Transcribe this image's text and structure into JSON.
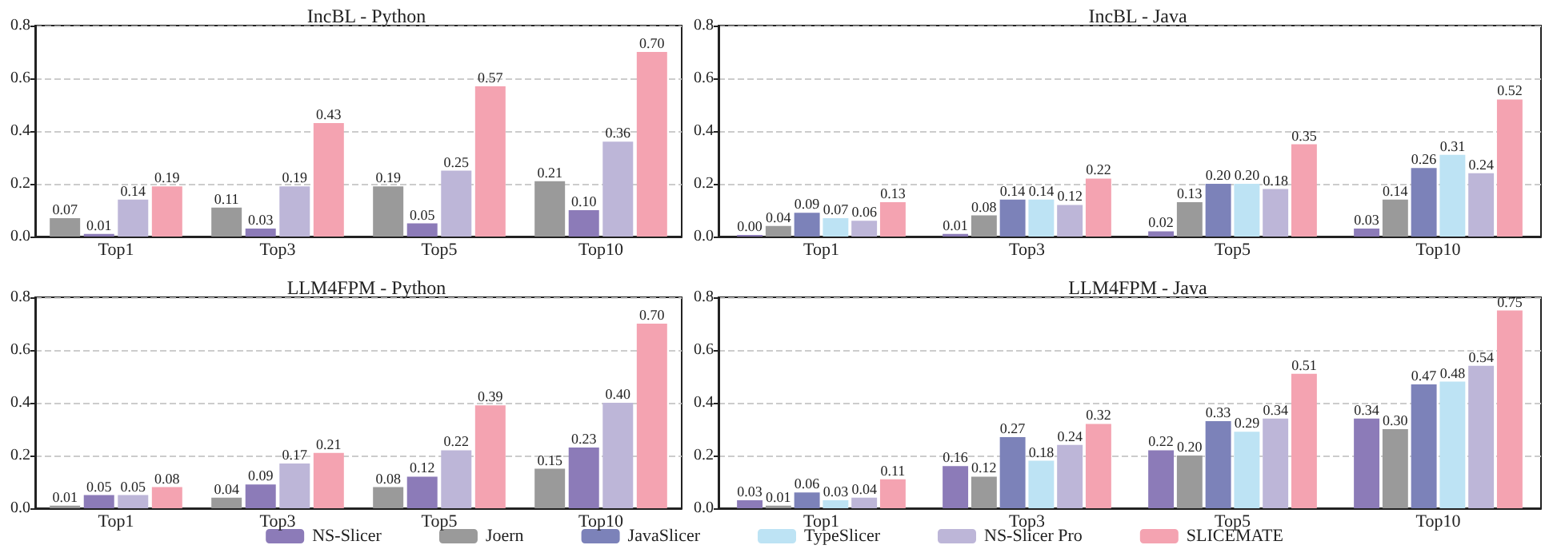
{
  "chart_data": [
    {
      "type": "bar",
      "title": "IncBL - Python",
      "categories": [
        "Top1",
        "Top3",
        "Top5",
        "Top10"
      ],
      "ylim": [
        0,
        0.8
      ],
      "yticks": [
        {
          "value": 0,
          "label": "0.0"
        },
        {
          "value": 0.2,
          "label": "0.2"
        },
        {
          "value": 0.4,
          "label": "0.4"
        },
        {
          "value": 0.6,
          "label": "0.6"
        },
        {
          "value": 0.8,
          "label": "0.8"
        }
      ],
      "grid": "y",
      "legend": false,
      "series": [
        {
          "color": "#9a9a9a",
          "values": [
            0.07,
            0.11,
            0.19,
            0.21
          ],
          "value_labels": [
            "0.07",
            "0.11",
            "0.19",
            "0.21"
          ]
        },
        {
          "color": "#8c7bb8",
          "values": [
            0.01,
            0.03,
            0.05,
            0.1
          ],
          "value_labels": [
            "0.01",
            "0.03",
            "0.05",
            "0.10"
          ]
        },
        {
          "color": "#bdb6d8",
          "values": [
            0.14,
            0.19,
            0.25,
            0.36
          ],
          "value_labels": [
            "0.14",
            "0.19",
            "0.25",
            "0.36"
          ]
        },
        {
          "color": "#f4a3b1",
          "values": [
            0.19,
            0.43,
            0.57,
            0.7
          ],
          "value_labels": [
            "0.19",
            "0.43",
            "0.57",
            "0.70"
          ]
        }
      ]
    },
    {
      "type": "bar",
      "title": "IncBL - Java",
      "categories": [
        "Top1",
        "Top3",
        "Top5",
        "Top10"
      ],
      "ylim": [
        0,
        0.8
      ],
      "yticks": [
        {
          "value": 0,
          "label": "0.0"
        },
        {
          "value": 0.2,
          "label": "0.2"
        },
        {
          "value": 0.4,
          "label": "0.4"
        },
        {
          "value": 0.6,
          "label": "0.6"
        },
        {
          "value": 0.8,
          "label": "0.8"
        }
      ],
      "grid": "y",
      "legend": false,
      "series": [
        {
          "color": "#8c7bb8",
          "values": [
            0.0,
            0.01,
            0.02,
            0.03
          ],
          "value_labels": [
            "0.00",
            "0.01",
            "0.02",
            "0.03"
          ]
        },
        {
          "color": "#9a9a9a",
          "values": [
            0.04,
            0.08,
            0.13,
            0.14
          ],
          "value_labels": [
            "0.04",
            "0.08",
            "0.13",
            "0.14"
          ]
        },
        {
          "color": "#7c82b9",
          "values": [
            0.09,
            0.14,
            0.2,
            0.26
          ],
          "value_labels": [
            "0.09",
            "0.14",
            "0.20",
            "0.26"
          ]
        },
        {
          "color": "#bde3f4",
          "values": [
            0.07,
            0.14,
            0.2,
            0.31
          ],
          "value_labels": [
            "0.07",
            "0.14",
            "0.20",
            "0.31"
          ]
        },
        {
          "color": "#bdb6d8",
          "values": [
            0.06,
            0.12,
            0.18,
            0.24
          ],
          "value_labels": [
            "0.06",
            "0.12",
            "0.18",
            "0.24"
          ]
        },
        {
          "color": "#f4a3b1",
          "values": [
            0.13,
            0.22,
            0.35,
            0.52
          ],
          "value_labels": [
            "0.13",
            "0.22",
            "0.35",
            "0.52"
          ]
        }
      ]
    },
    {
      "type": "bar",
      "title": "LLM4FPM - Python",
      "categories": [
        "Top1",
        "Top3",
        "Top5",
        "Top10"
      ],
      "ylim": [
        0,
        0.8
      ],
      "yticks": [
        {
          "value": 0,
          "label": "0.0"
        },
        {
          "value": 0.2,
          "label": "0.2"
        },
        {
          "value": 0.4,
          "label": "0.4"
        },
        {
          "value": 0.6,
          "label": "0.6"
        },
        {
          "value": 0.8,
          "label": "0.8"
        }
      ],
      "grid": "y",
      "legend": false,
      "series": [
        {
          "color": "#9a9a9a",
          "values": [
            0.01,
            0.04,
            0.08,
            0.15
          ],
          "value_labels": [
            "0.01",
            "0.04",
            "0.08",
            "0.15"
          ]
        },
        {
          "color": "#8c7bb8",
          "values": [
            0.05,
            0.09,
            0.12,
            0.23
          ],
          "value_labels": [
            "0.05",
            "0.09",
            "0.12",
            "0.23"
          ]
        },
        {
          "color": "#bdb6d8",
          "values": [
            0.05,
            0.17,
            0.22,
            0.4
          ],
          "value_labels": [
            "0.05",
            "0.17",
            "0.22",
            "0.40"
          ]
        },
        {
          "color": "#f4a3b1",
          "values": [
            0.08,
            0.21,
            0.39,
            0.7
          ],
          "value_labels": [
            "0.08",
            "0.21",
            "0.39",
            "0.70"
          ]
        }
      ]
    },
    {
      "type": "bar",
      "title": "LLM4FPM - Java",
      "categories": [
        "Top1",
        "Top3",
        "Top5",
        "Top10"
      ],
      "ylim": [
        0,
        0.8
      ],
      "yticks": [
        {
          "value": 0,
          "label": "0.0"
        },
        {
          "value": 0.2,
          "label": "0.2"
        },
        {
          "value": 0.4,
          "label": "0.4"
        },
        {
          "value": 0.6,
          "label": "0.6"
        },
        {
          "value": 0.8,
          "label": "0.8"
        }
      ],
      "grid": "y",
      "legend": "bottom",
      "series": [
        {
          "name": "NS-Slicer",
          "color": "#8c7bb8",
          "values": [
            0.03,
            0.16,
            0.22,
            0.34
          ],
          "value_labels": [
            "0.03",
            "0.16",
            "0.22",
            "0.34"
          ]
        },
        {
          "name": "Joern",
          "color": "#9a9a9a",
          "values": [
            0.01,
            0.12,
            0.2,
            0.3
          ],
          "value_labels": [
            "0.01",
            "0.12",
            "0.20",
            "0.30"
          ]
        },
        {
          "name": "JavaSlicer",
          "color": "#7c82b9",
          "values": [
            0.06,
            0.27,
            0.33,
            0.47
          ],
          "value_labels": [
            "0.06",
            "0.27",
            "0.33",
            "0.47"
          ]
        },
        {
          "name": "TypeSlicer",
          "color": "#bde3f4",
          "values": [
            0.03,
            0.18,
            0.29,
            0.48
          ],
          "value_labels": [
            "0.03",
            "0.18",
            "0.29",
            "0.48"
          ]
        },
        {
          "name": "NS-Slicer Pro",
          "color": "#bdb6d8",
          "values": [
            0.04,
            0.24,
            0.34,
            0.54
          ],
          "value_labels": [
            "0.04",
            "0.24",
            "0.34",
            "0.54"
          ]
        },
        {
          "name": "SLICEMATE",
          "color": "#f4a3b1",
          "values": [
            0.11,
            0.32,
            0.51,
            0.75
          ],
          "value_labels": [
            "0.11",
            "0.32",
            "0.51",
            "0.75"
          ]
        }
      ]
    }
  ]
}
